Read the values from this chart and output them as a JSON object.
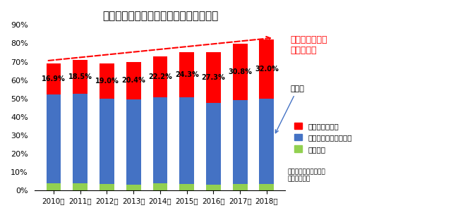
{
  "years": [
    "2010年",
    "2011年",
    "2012年",
    "2013年",
    "2014年",
    "2015年",
    "2016年",
    "2017年",
    "2018年"
  ],
  "trust_bank": [
    16.9,
    18.5,
    19.0,
    20.4,
    22.2,
    24.3,
    27.3,
    30.8,
    32.0
  ],
  "major_shareholders": [
    48.0,
    48.5,
    46.5,
    46.3,
    47.0,
    47.0,
    44.5,
    45.5,
    46.5
  ],
  "own_shares": [
    4.1,
    4.0,
    3.5,
    3.3,
    3.8,
    3.7,
    3.2,
    3.5,
    3.5
  ],
  "color_trust": "#FF0000",
  "color_major": "#4472C4",
  "color_own": "#92D050",
  "title": "ファーストリテイリング社の固定株比率",
  "ylim": [
    0,
    90
  ],
  "yticks": [
    0,
    10,
    20,
    30,
    40,
    50,
    60,
    70,
    80,
    90
  ],
  "legend_trust": "信託銀行保有分",
  "legend_major": "信託銀行以外の大株主",
  "legend_own": "自社株他",
  "annotation_yokobai": "横ばい",
  "annotation_trend": "信託銀行保有分\nが増加傾向",
  "source_text": "出所：有価証券報告書\nより筆者作成",
  "bg_color": "#FFFFFF",
  "bar_width": 0.55
}
